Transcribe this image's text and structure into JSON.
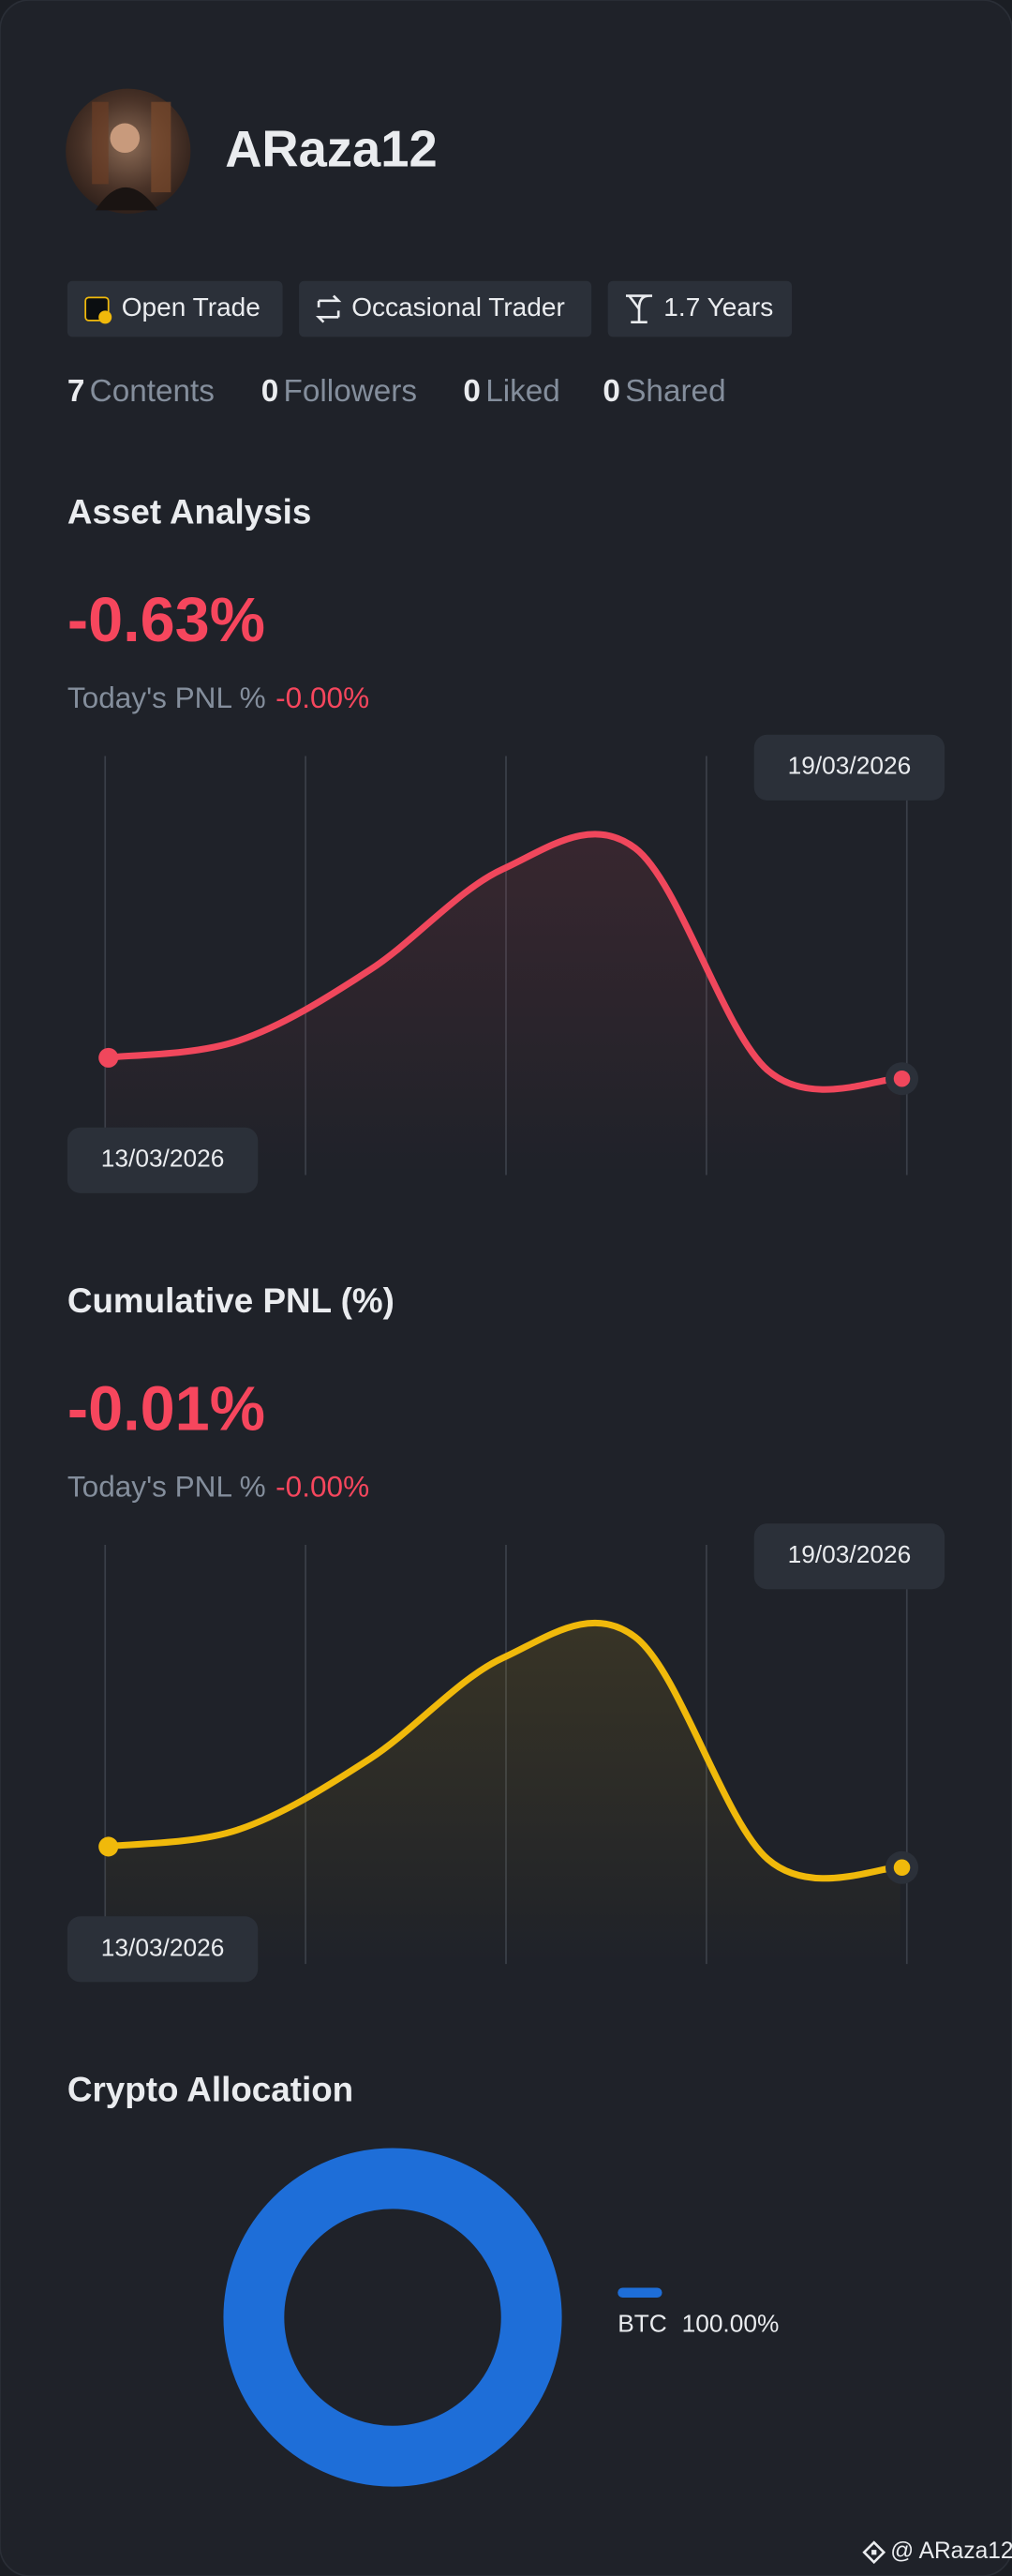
{
  "profile": {
    "username": "ARaza12",
    "tags": [
      "Open Trade",
      "Occasional Trader",
      "1.7 Years"
    ],
    "stats": [
      {
        "value": 7,
        "label": "Contents"
      },
      {
        "value": 0,
        "label": "Followers"
      },
      {
        "value": 0,
        "label": "Liked"
      },
      {
        "value": 0,
        "label": "Shared"
      }
    ]
  },
  "chart_data": [
    {
      "type": "line",
      "title": "Asset Analysis",
      "headline": "-0.63%",
      "today_label": "Today's PNL %",
      "today_value": "-0.00%",
      "categories": [
        "13/03/2026",
        null,
        null,
        null,
        null,
        null,
        "19/03/2026"
      ],
      "series": [
        {
          "color": "#f0475c",
          "values": [
            28,
            32,
            49,
            73,
            78,
            25,
            23
          ]
        }
      ],
      "ylim": [
        0,
        100
      ]
    },
    {
      "type": "line",
      "title": "Cumulative PNL (%)",
      "headline": "-0.01%",
      "today_label": "Today's PNL %",
      "today_value": "-0.00%",
      "categories": [
        "13/03/2026",
        null,
        null,
        null,
        null,
        null,
        "19/03/2026"
      ],
      "series": [
        {
          "color": "#f0b90b",
          "values": [
            28,
            32,
            49,
            73,
            78,
            25,
            23
          ]
        }
      ],
      "ylim": [
        0,
        100
      ]
    },
    {
      "type": "pie",
      "title": "Crypto Allocation",
      "categories": [
        "BTC"
      ],
      "values": [
        100
      ],
      "value_labels": [
        "100.00%"
      ],
      "colors": [
        "#1e6ed8"
      ]
    }
  ],
  "footer": {
    "handle": "@ ARaza12"
  }
}
